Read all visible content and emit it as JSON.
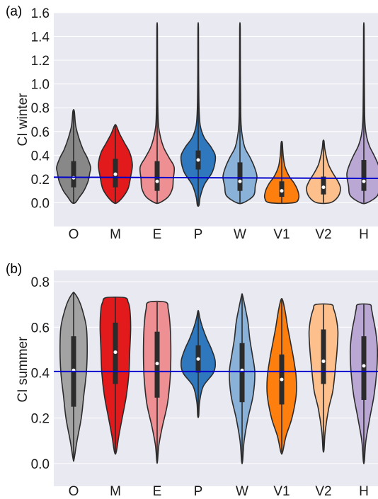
{
  "chart_data": [
    {
      "type": "violin",
      "panel_label": "(a)",
      "ylabel": "CI winter",
      "ylim": [
        -0.2,
        1.6
      ],
      "yticks": [
        "0.0",
        "0.2",
        "0.4",
        "0.6",
        "0.8",
        "1.0",
        "1.2",
        "1.4",
        "1.6"
      ],
      "categories": [
        "O",
        "M",
        "E",
        "P",
        "W",
        "V1",
        "V2",
        "H"
      ],
      "reference_line": {
        "y_start": 0.215,
        "y_end": 0.205,
        "color": "#0000cc"
      },
      "violins": [
        {
          "category": "O",
          "color": "#888888",
          "min": 0.0,
          "max": 0.77,
          "q1": 0.13,
          "median": 0.21,
          "q3": 0.35,
          "profile": [
            [
              0.0,
              0.1
            ],
            [
              0.05,
              0.35
            ],
            [
              0.1,
              0.6
            ],
            [
              0.18,
              0.85
            ],
            [
              0.25,
              0.95
            ],
            [
              0.3,
              1.0
            ],
            [
              0.38,
              0.8
            ],
            [
              0.45,
              0.55
            ],
            [
              0.55,
              0.3
            ],
            [
              0.65,
              0.12
            ],
            [
              0.77,
              0.04
            ]
          ]
        },
        {
          "category": "M",
          "color": "#e31a1c",
          "min": 0.0,
          "max": 0.65,
          "q1": 0.13,
          "median": 0.24,
          "q3": 0.37,
          "profile": [
            [
              0.0,
              0.1
            ],
            [
              0.05,
              0.45
            ],
            [
              0.12,
              0.75
            ],
            [
              0.22,
              0.9
            ],
            [
              0.32,
              1.0
            ],
            [
              0.42,
              0.85
            ],
            [
              0.5,
              0.55
            ],
            [
              0.58,
              0.25
            ],
            [
              0.65,
              0.05
            ]
          ]
        },
        {
          "category": "E",
          "color": "#ee8f93",
          "min": 0.0,
          "max": 1.47,
          "q1": 0.1,
          "median": 0.18,
          "q3": 0.35,
          "profile": [
            [
              0.0,
              0.15
            ],
            [
              0.05,
              0.65
            ],
            [
              0.12,
              0.9
            ],
            [
              0.2,
              0.95
            ],
            [
              0.3,
              1.0
            ],
            [
              0.38,
              0.7
            ],
            [
              0.46,
              0.4
            ],
            [
              0.55,
              0.2
            ],
            [
              0.65,
              0.08
            ],
            [
              0.8,
              0.04
            ],
            [
              1.1,
              0.025
            ],
            [
              1.47,
              0.015
            ]
          ]
        },
        {
          "category": "P",
          "color": "#2f78be",
          "min": -0.02,
          "max": 1.47,
          "q1": 0.28,
          "median": 0.36,
          "q3": 0.44,
          "profile": [
            [
              -0.02,
              0.05
            ],
            [
              0.05,
              0.12
            ],
            [
              0.15,
              0.35
            ],
            [
              0.25,
              0.8
            ],
            [
              0.33,
              0.98
            ],
            [
              0.4,
              1.0
            ],
            [
              0.47,
              0.75
            ],
            [
              0.55,
              0.35
            ],
            [
              0.65,
              0.12
            ],
            [
              0.8,
              0.05
            ],
            [
              1.1,
              0.025
            ],
            [
              1.47,
              0.015
            ]
          ]
        },
        {
          "category": "W",
          "color": "#8ab1d8",
          "min": 0.0,
          "max": 1.47,
          "q1": 0.1,
          "median": 0.18,
          "q3": 0.34,
          "profile": [
            [
              0.0,
              0.2
            ],
            [
              0.06,
              0.8
            ],
            [
              0.14,
              0.9
            ],
            [
              0.22,
              1.0
            ],
            [
              0.3,
              0.85
            ],
            [
              0.38,
              0.6
            ],
            [
              0.46,
              0.3
            ],
            [
              0.55,
              0.15
            ],
            [
              0.65,
              0.07
            ],
            [
              0.8,
              0.04
            ],
            [
              1.1,
              0.025
            ],
            [
              1.47,
              0.015
            ]
          ]
        },
        {
          "category": "V1",
          "color": "#ff7f0e",
          "min": 0.0,
          "max": 0.51,
          "q1": 0.05,
          "median": 0.1,
          "q3": 0.18,
          "profile": [
            [
              0.0,
              0.7
            ],
            [
              0.04,
              1.0
            ],
            [
              0.1,
              0.95
            ],
            [
              0.16,
              0.75
            ],
            [
              0.22,
              0.45
            ],
            [
              0.3,
              0.2
            ],
            [
              0.38,
              0.1
            ],
            [
              0.45,
              0.06
            ],
            [
              0.51,
              0.03
            ]
          ]
        },
        {
          "category": "V2",
          "color": "#fdc08c",
          "min": 0.0,
          "max": 0.52,
          "q1": 0.07,
          "median": 0.13,
          "q3": 0.22,
          "profile": [
            [
              0.0,
              0.4
            ],
            [
              0.05,
              0.85
            ],
            [
              0.12,
              1.0
            ],
            [
              0.18,
              0.85
            ],
            [
              0.25,
              0.55
            ],
            [
              0.32,
              0.3
            ],
            [
              0.4,
              0.15
            ],
            [
              0.46,
              0.07
            ],
            [
              0.52,
              0.03
            ]
          ]
        },
        {
          "category": "H",
          "color": "#bba7d4",
          "min": 0.0,
          "max": 1.47,
          "q1": 0.1,
          "median": 0.18,
          "q3": 0.36,
          "profile": [
            [
              0.0,
              0.2
            ],
            [
              0.06,
              0.8
            ],
            [
              0.14,
              0.9
            ],
            [
              0.24,
              1.0
            ],
            [
              0.32,
              0.85
            ],
            [
              0.4,
              0.6
            ],
            [
              0.48,
              0.32
            ],
            [
              0.56,
              0.16
            ],
            [
              0.66,
              0.07
            ],
            [
              0.8,
              0.04
            ],
            [
              1.1,
              0.025
            ],
            [
              1.47,
              0.015
            ]
          ]
        }
      ]
    },
    {
      "type": "violin",
      "panel_label": "(b)",
      "ylabel": "CI summer",
      "ylim": [
        -0.1,
        0.85
      ],
      "yticks": [
        "0.0",
        "0.2",
        "0.4",
        "0.6",
        "0.8"
      ],
      "categories": [
        "O",
        "M",
        "E",
        "P",
        "W",
        "V1",
        "V2",
        "H"
      ],
      "reference_line": {
        "y_start": 0.405,
        "y_end": 0.405,
        "color": "#0000cc"
      },
      "violins": [
        {
          "category": "O",
          "color": "#a3a3a3",
          "min": 0.02,
          "max": 0.75,
          "q1": 0.25,
          "median": 0.41,
          "q3": 0.56,
          "profile": [
            [
              0.02,
              0.03
            ],
            [
              0.1,
              0.2
            ],
            [
              0.2,
              0.45
            ],
            [
              0.3,
              0.6
            ],
            [
              0.4,
              0.75
            ],
            [
              0.5,
              0.8
            ],
            [
              0.6,
              0.75
            ],
            [
              0.68,
              0.5
            ],
            [
              0.72,
              0.3
            ],
            [
              0.75,
              0.05
            ]
          ]
        },
        {
          "category": "M",
          "color": "#e31a1c",
          "min": 0.05,
          "max": 0.73,
          "q1": 0.35,
          "median": 0.49,
          "q3": 0.62,
          "profile": [
            [
              0.05,
              0.05
            ],
            [
              0.12,
              0.2
            ],
            [
              0.2,
              0.4
            ],
            [
              0.3,
              0.65
            ],
            [
              0.4,
              0.8
            ],
            [
              0.5,
              0.85
            ],
            [
              0.6,
              0.9
            ],
            [
              0.68,
              0.85
            ],
            [
              0.71,
              0.75
            ],
            [
              0.73,
              0.55
            ]
          ]
        },
        {
          "category": "E",
          "color": "#ee8f93",
          "min": 0.01,
          "max": 0.71,
          "q1": 0.29,
          "median": 0.44,
          "q3": 0.58,
          "profile": [
            [
              0.01,
              0.02
            ],
            [
              0.08,
              0.1
            ],
            [
              0.16,
              0.3
            ],
            [
              0.26,
              0.6
            ],
            [
              0.36,
              0.75
            ],
            [
              0.44,
              0.8
            ],
            [
              0.54,
              0.8
            ],
            [
              0.62,
              0.75
            ],
            [
              0.68,
              0.65
            ],
            [
              0.71,
              0.5
            ]
          ]
        },
        {
          "category": "P",
          "color": "#2f78be",
          "min": 0.21,
          "max": 0.67,
          "q1": 0.4,
          "median": 0.46,
          "q3": 0.52,
          "profile": [
            [
              0.21,
              0.03
            ],
            [
              0.27,
              0.08
            ],
            [
              0.34,
              0.3
            ],
            [
              0.4,
              0.9
            ],
            [
              0.45,
              1.0
            ],
            [
              0.5,
              0.8
            ],
            [
              0.55,
              0.5
            ],
            [
              0.6,
              0.25
            ],
            [
              0.64,
              0.1
            ],
            [
              0.67,
              0.02
            ]
          ]
        },
        {
          "category": "W",
          "color": "#8ab1d8",
          "min": 0.01,
          "max": 0.74,
          "q1": 0.27,
          "median": 0.41,
          "q3": 0.53,
          "profile": [
            [
              0.01,
              0.03
            ],
            [
              0.1,
              0.12
            ],
            [
              0.2,
              0.35
            ],
            [
              0.3,
              0.65
            ],
            [
              0.4,
              0.75
            ],
            [
              0.48,
              0.6
            ],
            [
              0.55,
              0.45
            ],
            [
              0.62,
              0.35
            ],
            [
              0.68,
              0.2
            ],
            [
              0.74,
              0.03
            ]
          ]
        },
        {
          "category": "V1",
          "color": "#ff7f0e",
          "min": 0.05,
          "max": 0.72,
          "q1": 0.26,
          "median": 0.37,
          "q3": 0.48,
          "profile": [
            [
              0.05,
              0.05
            ],
            [
              0.12,
              0.25
            ],
            [
              0.2,
              0.6
            ],
            [
              0.3,
              0.85
            ],
            [
              0.38,
              0.85
            ],
            [
              0.46,
              0.7
            ],
            [
              0.54,
              0.5
            ],
            [
              0.6,
              0.35
            ],
            [
              0.67,
              0.2
            ],
            [
              0.72,
              0.05
            ]
          ]
        },
        {
          "category": "V2",
          "color": "#fdc08c",
          "min": 0.06,
          "max": 0.7,
          "q1": 0.35,
          "median": 0.45,
          "q3": 0.59,
          "profile": [
            [
              0.06,
              0.03
            ],
            [
              0.14,
              0.1
            ],
            [
              0.24,
              0.3
            ],
            [
              0.32,
              0.55
            ],
            [
              0.42,
              0.7
            ],
            [
              0.5,
              0.8
            ],
            [
              0.58,
              0.85
            ],
            [
              0.64,
              0.75
            ],
            [
              0.68,
              0.6
            ],
            [
              0.7,
              0.45
            ]
          ]
        },
        {
          "category": "H",
          "color": "#bba7d4",
          "min": 0.01,
          "max": 0.7,
          "q1": 0.28,
          "median": 0.43,
          "q3": 0.56,
          "profile": [
            [
              0.01,
              0.03
            ],
            [
              0.1,
              0.12
            ],
            [
              0.2,
              0.35
            ],
            [
              0.3,
              0.6
            ],
            [
              0.4,
              0.75
            ],
            [
              0.5,
              0.8
            ],
            [
              0.58,
              0.7
            ],
            [
              0.64,
              0.55
            ],
            [
              0.68,
              0.45
            ],
            [
              0.7,
              0.35
            ]
          ]
        }
      ]
    }
  ]
}
